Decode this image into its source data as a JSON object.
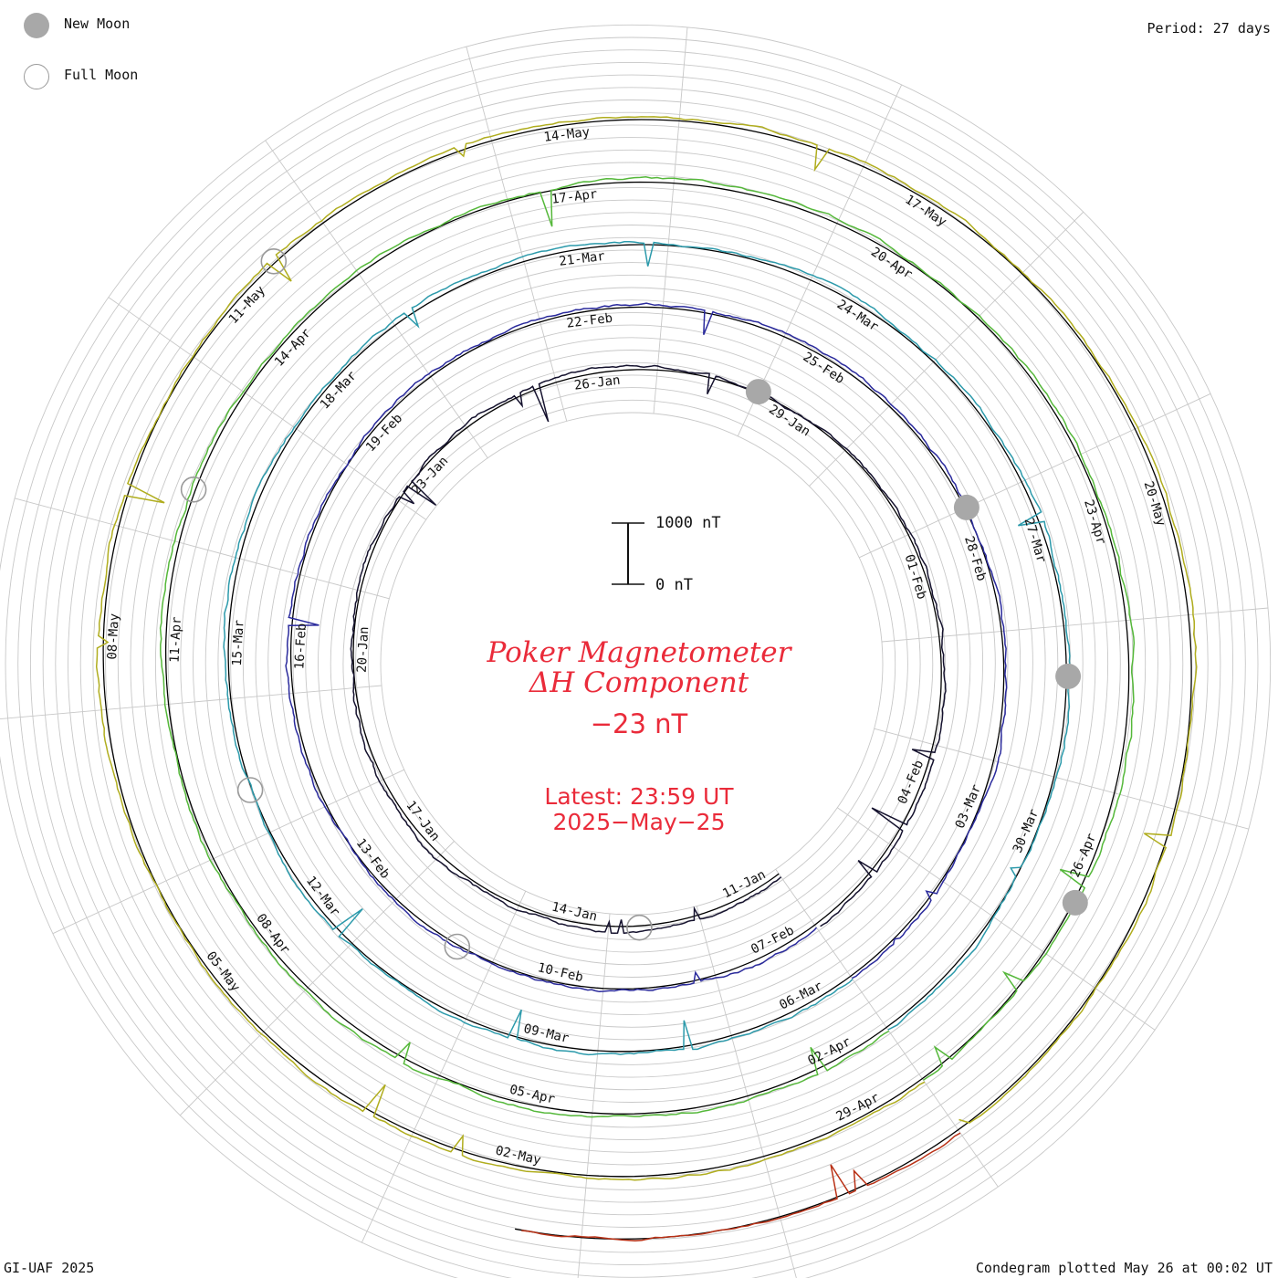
{
  "legend": {
    "new_moon": "New Moon",
    "full_moon": "Full Moon"
  },
  "period": "Period: 27 days",
  "title": {
    "line1": "Poker Magnetometer",
    "line2": "ΔH Component"
  },
  "current_value": "−23 nT",
  "latest": {
    "line1": "Latest: 23:59 UT",
    "line2": "2025−May−25"
  },
  "scale": {
    "top": "1000 nT",
    "bottom": "0 nT"
  },
  "credit": "GI-UAF 2025",
  "plotted": "Condegram plotted May 26 at 00:02 UT",
  "colors": {
    "accent_text": "#ea2b3a",
    "grid": "#c8c8c8",
    "baseline": "#000000",
    "new_moon": "#a8a8a8",
    "full_moon": "#9a9a9a"
  },
  "chart_data": {
    "type": "line",
    "description_free": true,
    "period_days": 27,
    "units": "nT",
    "scale_bar_nT": [
      0,
      1000
    ],
    "current_nT": -23,
    "rotations": [
      {
        "color": "#15122e",
        "date_labels": [
          "11-Jan",
          "14-Jan",
          "17-Jan",
          "20-Jan",
          "23-Jan",
          "26-Jan",
          "29-Jan"
        ]
      },
      {
        "color": "#2a2a9c",
        "date_labels": [
          "01-Feb",
          "04-Feb",
          "07-Feb",
          "10-Feb",
          "13-Feb",
          "16-Feb",
          "19-Feb",
          "22-Feb",
          "25-Feb"
        ]
      },
      {
        "color": "#2c9aab",
        "date_labels": [
          "28-Feb",
          "03-Mar",
          "06-Mar",
          "09-Mar",
          "12-Mar",
          "15-Mar",
          "18-Mar",
          "21-Mar",
          "24-Mar"
        ]
      },
      {
        "color": "#55b83a",
        "date_labels": [
          "27-Mar",
          "30-Mar",
          "02-Apr",
          "05-Apr",
          "08-Apr",
          "11-Apr",
          "14-Apr",
          "17-Apr",
          "20-Apr"
        ]
      },
      {
        "color": "#b0ad1e",
        "date_labels": [
          "23-Apr",
          "26-Apr",
          "29-Apr",
          "02-May",
          "05-May",
          "08-May",
          "11-May",
          "14-May",
          "17-May"
        ]
      },
      {
        "color": "#b93116",
        "date_labels": [
          "20-May"
        ]
      }
    ],
    "new_moons": [
      "29-Jan",
      "28-Feb",
      "29-Mar",
      "27-Apr"
    ],
    "full_moons": [
      "13-Jan",
      "12-Feb",
      "14-Mar",
      "13-Apr",
      "12-May"
    ]
  }
}
